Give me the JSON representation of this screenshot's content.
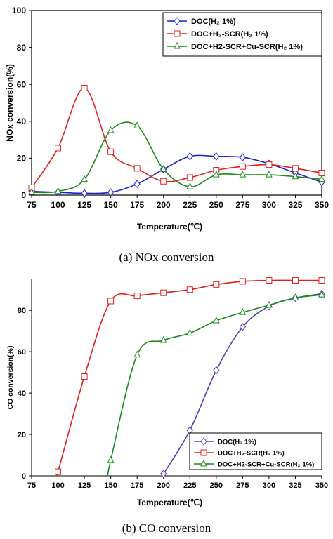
{
  "chart_data": [
    {
      "type": "line",
      "caption": "(a)  NOx  conversion",
      "xlabel": "Temperature(℃)",
      "ylabel": "NOx conversion(%)",
      "xlim": [
        75,
        350
      ],
      "ylim": [
        0,
        100
      ],
      "xticks": [
        75,
        100,
        125,
        150,
        175,
        200,
        225,
        250,
        275,
        300,
        325,
        350
      ],
      "yticks": [
        0,
        20,
        40,
        60,
        80,
        100
      ],
      "legend_position": "top-right",
      "series": [
        {
          "name": "DOC(H₂ 1%)",
          "color": "#1f1fcc",
          "marker": "diamond",
          "x": [
            75,
            100,
            125,
            150,
            175,
            200,
            225,
            250,
            275,
            300,
            325,
            350
          ],
          "y": [
            2,
            1.5,
            1,
            1.5,
            6,
            14,
            21,
            21,
            20.5,
            17,
            12,
            7
          ]
        },
        {
          "name": "DOC+H₂-SCR(H₂ 1%)",
          "color": "#e02020",
          "marker": "square",
          "x": [
            75,
            100,
            125,
            150,
            175,
            200,
            225,
            250,
            275,
            300,
            325,
            350
          ],
          "y": [
            4,
            25.5,
            58,
            23.5,
            14.5,
            7.5,
            9.5,
            13.5,
            15.5,
            16.5,
            14.5,
            12
          ]
        },
        {
          "name": "DOC+H2-SCR+Cu-SCR(H₂ 1%)",
          "color": "#1a8a1a",
          "marker": "triangle",
          "x": [
            75,
            100,
            125,
            150,
            175,
            200,
            225,
            250,
            275,
            300,
            325,
            350
          ],
          "y": [
            1.5,
            2,
            8.5,
            35,
            37.5,
            14,
            4.5,
            11,
            11,
            11,
            10,
            8.5
          ]
        }
      ]
    },
    {
      "type": "line",
      "caption": "(b)  CO  conversion",
      "xlabel": "Temperature(℃)",
      "ylabel": "CO conversion(%)",
      "xlim": [
        75,
        350
      ],
      "ylim": [
        0,
        95
      ],
      "xticks": [
        75,
        100,
        125,
        150,
        175,
        200,
        225,
        250,
        275,
        300,
        325,
        350
      ],
      "yticks": [
        0,
        20,
        40,
        60,
        80
      ],
      "legend_position": "bottom-right",
      "series": [
        {
          "name": "DOC(H₂ 1%)",
          "color": "#4a44b0",
          "marker": "diamond",
          "x": [
            200,
            225,
            250,
            275,
            300,
            325,
            350
          ],
          "y": [
            1,
            22,
            51,
            72,
            82,
            86,
            88
          ]
        },
        {
          "name": "DOC+H₂-SCR(H₂ 1%)",
          "color": "#e02020",
          "marker": "square",
          "x": [
            100,
            125,
            150,
            175,
            200,
            225,
            250,
            275,
            300,
            325,
            350
          ],
          "y": [
            2,
            48,
            84.5,
            87,
            88.5,
            90,
            92.5,
            94,
            94.5,
            94.5,
            94.5
          ]
        },
        {
          "name": "DOC+H2-SCR+Cu-SCR(H₂ 1%)",
          "color": "#1a8a1a",
          "marker": "triangle",
          "x": [
            150,
            175,
            200,
            225,
            250,
            275,
            300,
            325,
            350
          ],
          "y": [
            7.5,
            58.5,
            65.5,
            69,
            75,
            79,
            82.5,
            86,
            87.5
          ]
        }
      ]
    }
  ]
}
